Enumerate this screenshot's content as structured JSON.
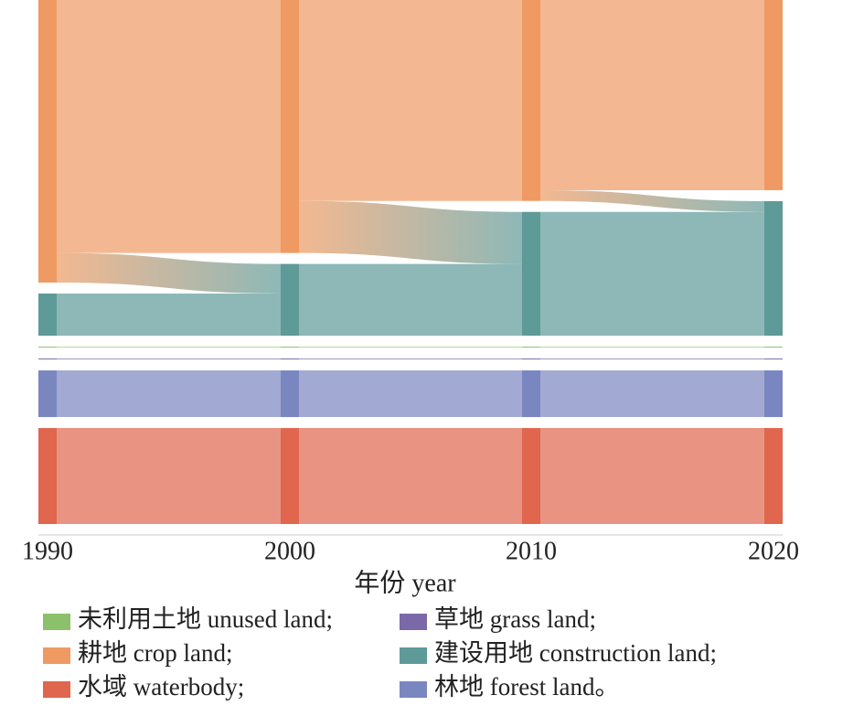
{
  "chart_data": {
    "type": "sankey",
    "xlabel": "年份 year",
    "categories": [
      "1990",
      "2000",
      "2010",
      "2020"
    ],
    "series": [
      {
        "name": "耕地 crop land;",
        "color": "#ee9a62",
        "values": [
          315,
          282,
          224,
          212
        ]
      },
      {
        "name": "建设用地 construction land;",
        "color": "#5e9a98",
        "values": [
          47,
          80,
          138,
          150
        ]
      },
      {
        "name": "未利用土地 unused land;",
        "color": "#8cc06a",
        "values": [
          1,
          1,
          1,
          1
        ]
      },
      {
        "name": "草地 grass land;",
        "color": "#7b68a8",
        "values": [
          1,
          1,
          1,
          1
        ]
      },
      {
        "name": "林地 forest land。",
        "color": "#7a86c0",
        "values": [
          52,
          52,
          52,
          52
        ]
      },
      {
        "name": "水域 waterbody;",
        "color": "#e0664e",
        "values": [
          107,
          107,
          107,
          107
        ]
      }
    ],
    "flows": [
      [
        {
          "from": 0,
          "to": 0,
          "value": 282
        },
        {
          "from": 0,
          "to": 1,
          "value": 33
        },
        {
          "from": 1,
          "to": 1,
          "value": 47
        },
        {
          "from": 2,
          "to": 2,
          "value": 1
        },
        {
          "from": 3,
          "to": 3,
          "value": 1
        },
        {
          "from": 4,
          "to": 4,
          "value": 52
        },
        {
          "from": 5,
          "to": 5,
          "value": 107
        }
      ],
      [
        {
          "from": 0,
          "to": 0,
          "value": 224
        },
        {
          "from": 0,
          "to": 1,
          "value": 58
        },
        {
          "from": 1,
          "to": 1,
          "value": 80
        },
        {
          "from": 2,
          "to": 2,
          "value": 1
        },
        {
          "from": 3,
          "to": 3,
          "value": 1
        },
        {
          "from": 4,
          "to": 4,
          "value": 52
        },
        {
          "from": 5,
          "to": 5,
          "value": 107
        }
      ],
      [
        {
          "from": 0,
          "to": 0,
          "value": 212
        },
        {
          "from": 0,
          "to": 1,
          "value": 12
        },
        {
          "from": 1,
          "to": 1,
          "value": 138
        },
        {
          "from": 2,
          "to": 2,
          "value": 1
        },
        {
          "from": 3,
          "to": 3,
          "value": 1
        },
        {
          "from": 4,
          "to": 4,
          "value": 52
        },
        {
          "from": 5,
          "to": 5,
          "value": 107
        }
      ]
    ]
  }
}
